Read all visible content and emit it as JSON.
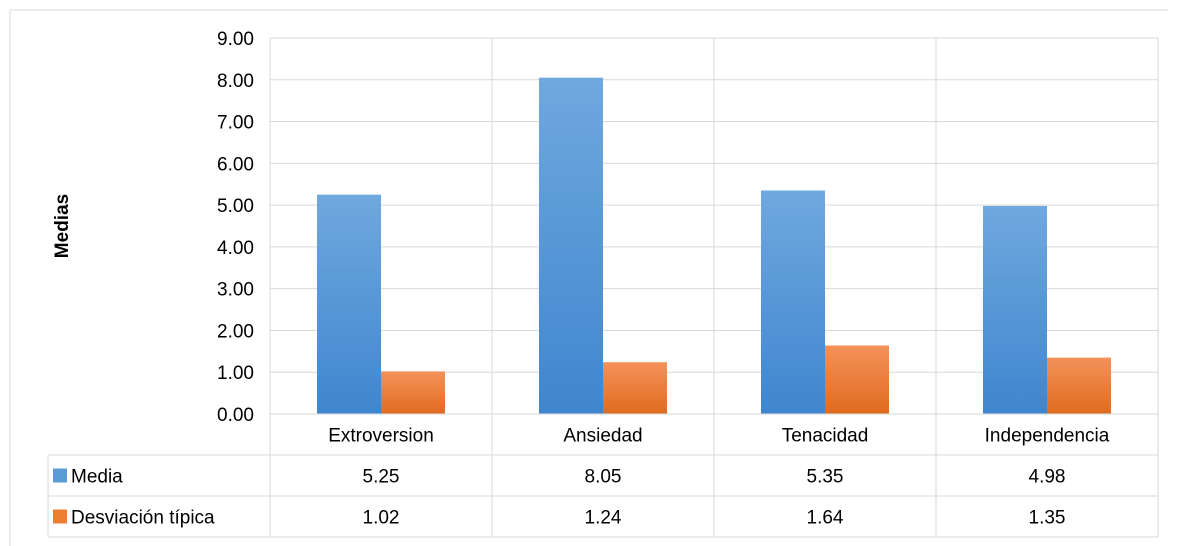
{
  "chart_data": {
    "type": "bar",
    "title": "",
    "xlabel": "",
    "ylabel": "Medias",
    "ylim": [
      0,
      9
    ],
    "yticks": [
      "0.00",
      "1.00",
      "2.00",
      "3.00",
      "4.00",
      "5.00",
      "6.00",
      "7.00",
      "8.00",
      "9.00"
    ],
    "categories": [
      "Extroversion",
      "Ansiedad",
      "Tenacidad",
      "Independencia"
    ],
    "grid": true,
    "legend": "data-table",
    "series": [
      {
        "name": "Media",
        "color": "#5B9BD5",
        "values": [
          5.25,
          8.05,
          5.35,
          4.98
        ],
        "labels": [
          "5.25",
          "8.05",
          "5.35",
          "4.98"
        ]
      },
      {
        "name": "Desviación típica",
        "color": "#ED7D31",
        "values": [
          1.02,
          1.24,
          1.64,
          1.35
        ],
        "labels": [
          "1.02",
          "1.24",
          "1.64",
          "1.35"
        ]
      }
    ]
  }
}
